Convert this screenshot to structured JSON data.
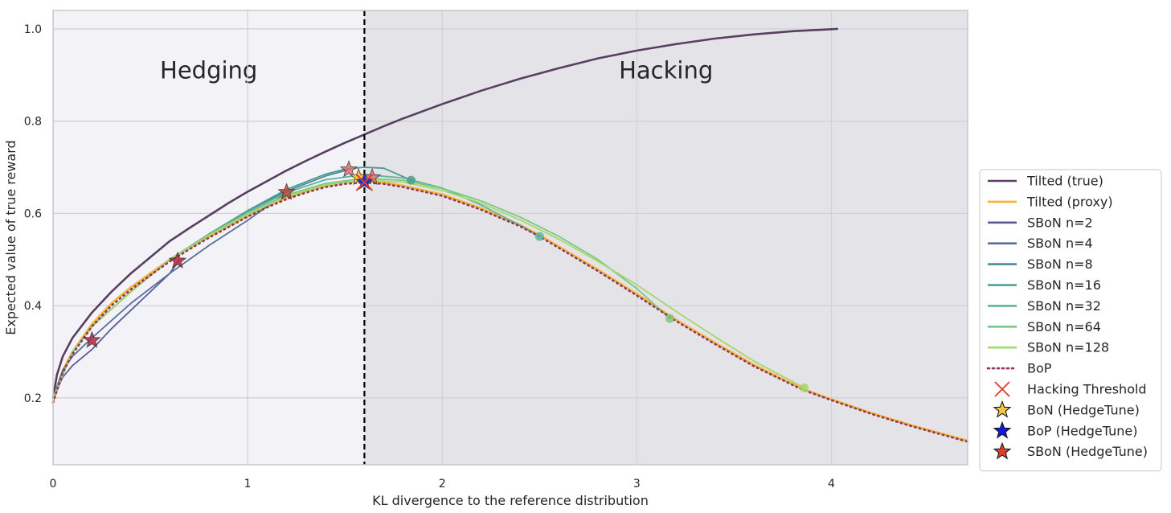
{
  "chart_data": {
    "type": "line",
    "xlabel": "KL divergence to the reference distribution",
    "ylabel": "Expected value of true reward",
    "xlim": [
      0,
      4.7
    ],
    "ylim": [
      0.055,
      1.04
    ],
    "x_ticks": [
      0,
      1,
      2,
      3,
      4
    ],
    "y_ticks": [
      0.2,
      0.4,
      0.6,
      0.8,
      1.0
    ],
    "x_tick_labels": [
      "0",
      "1",
      "2",
      "3",
      "4"
    ],
    "y_tick_labels": [
      "0.2",
      "0.4",
      "0.6",
      "0.8",
      "1.0"
    ],
    "grid": true,
    "legend_position": "right",
    "threshold_x": 1.6,
    "regions": [
      {
        "label": "Hedging",
        "x_range": [
          0,
          1.6
        ],
        "color": "#f2f2f7",
        "label_x": 0.8,
        "label_y": 0.91
      },
      {
        "label": "Hacking",
        "x_range": [
          1.6,
          4.7
        ],
        "color": "#e4e4e8",
        "label_x": 3.15,
        "label_y": 0.91
      }
    ],
    "series": [
      {
        "name": "Tilted (true)",
        "color": "#583f62",
        "style": "solid",
        "width": 2.6,
        "points": [
          [
            0,
            0.2
          ],
          [
            0.02,
            0.25
          ],
          [
            0.05,
            0.29
          ],
          [
            0.1,
            0.33
          ],
          [
            0.2,
            0.385
          ],
          [
            0.3,
            0.43
          ],
          [
            0.4,
            0.47
          ],
          [
            0.5,
            0.505
          ],
          [
            0.6,
            0.54
          ],
          [
            0.7,
            0.568
          ],
          [
            0.8,
            0.595
          ],
          [
            0.9,
            0.622
          ],
          [
            1.0,
            0.647
          ],
          [
            1.1,
            0.67
          ],
          [
            1.2,
            0.693
          ],
          [
            1.3,
            0.714
          ],
          [
            1.4,
            0.734
          ],
          [
            1.5,
            0.753
          ],
          [
            1.6,
            0.771
          ],
          [
            1.7,
            0.789
          ],
          [
            1.8,
            0.806
          ],
          [
            2.0,
            0.837
          ],
          [
            2.2,
            0.866
          ],
          [
            2.4,
            0.892
          ],
          [
            2.6,
            0.915
          ],
          [
            2.8,
            0.936
          ],
          [
            3.0,
            0.953
          ],
          [
            3.2,
            0.967
          ],
          [
            3.4,
            0.979
          ],
          [
            3.6,
            0.988
          ],
          [
            3.8,
            0.995
          ],
          [
            4.03,
            1.0
          ]
        ]
      },
      {
        "name": "Tilted (proxy)",
        "color": "#f9b233",
        "style": "solid",
        "width": 2.6,
        "points": [
          [
            0,
            0.19
          ],
          [
            0.05,
            0.26
          ],
          [
            0.1,
            0.3
          ],
          [
            0.2,
            0.36
          ],
          [
            0.3,
            0.405
          ],
          [
            0.4,
            0.44
          ],
          [
            0.5,
            0.47
          ],
          [
            0.6,
            0.5
          ],
          [
            0.7,
            0.525
          ],
          [
            0.8,
            0.55
          ],
          [
            0.9,
            0.573
          ],
          [
            1.0,
            0.596
          ],
          [
            1.1,
            0.616
          ],
          [
            1.2,
            0.634
          ],
          [
            1.3,
            0.648
          ],
          [
            1.4,
            0.66
          ],
          [
            1.5,
            0.667
          ],
          [
            1.6,
            0.67
          ],
          [
            1.7,
            0.667
          ],
          [
            1.8,
            0.66
          ],
          [
            2.0,
            0.641
          ],
          [
            2.2,
            0.611
          ],
          [
            2.4,
            0.575
          ],
          [
            2.5,
            0.553
          ],
          [
            2.6,
            0.528
          ],
          [
            2.8,
            0.478
          ],
          [
            3.0,
            0.425
          ],
          [
            3.2,
            0.37
          ],
          [
            3.4,
            0.32
          ],
          [
            3.6,
            0.272
          ],
          [
            3.85,
            0.22
          ],
          [
            4.0,
            0.197
          ],
          [
            4.2,
            0.168
          ],
          [
            4.4,
            0.142
          ],
          [
            4.7,
            0.107
          ]
        ]
      },
      {
        "name": "SBoN n=2",
        "color": "#5a5c9a",
        "style": "solid",
        "width": 1.8,
        "points": [
          [
            0,
            0.2
          ],
          [
            0.05,
            0.245
          ],
          [
            0.1,
            0.27
          ],
          [
            0.2,
            0.305
          ],
          [
            0.3,
            0.35
          ],
          [
            0.4,
            0.39
          ],
          [
            0.5,
            0.43
          ],
          [
            0.6,
            0.47
          ],
          [
            0.65,
            0.5
          ]
        ]
      },
      {
        "name": "SBoN n=4",
        "color": "#55709a",
        "style": "solid",
        "width": 1.8,
        "points": [
          [
            0,
            0.2
          ],
          [
            0.05,
            0.26
          ],
          [
            0.1,
            0.29
          ],
          [
            0.2,
            0.33
          ],
          [
            0.4,
            0.405
          ],
          [
            0.6,
            0.47
          ],
          [
            0.8,
            0.53
          ],
          [
            1.0,
            0.585
          ],
          [
            1.2,
            0.645
          ]
        ]
      },
      {
        "name": "SBoN n=8",
        "color": "#4d8a9a",
        "style": "solid",
        "width": 1.8,
        "points": [
          [
            0,
            0.2
          ],
          [
            0.1,
            0.3
          ],
          [
            0.2,
            0.355
          ],
          [
            0.4,
            0.43
          ],
          [
            0.6,
            0.5
          ],
          [
            0.8,
            0.555
          ],
          [
            1.0,
            0.605
          ],
          [
            1.2,
            0.648
          ],
          [
            1.4,
            0.681
          ],
          [
            1.52,
            0.695
          ]
        ]
      },
      {
        "name": "SBoN n=16",
        "color": "#4a9c90",
        "style": "solid",
        "width": 1.8,
        "points": [
          [
            0,
            0.2
          ],
          [
            0.1,
            0.3
          ],
          [
            0.2,
            0.355
          ],
          [
            0.4,
            0.43
          ],
          [
            0.6,
            0.5
          ],
          [
            0.8,
            0.555
          ],
          [
            1.0,
            0.606
          ],
          [
            1.2,
            0.652
          ],
          [
            1.4,
            0.685
          ],
          [
            1.5,
            0.696
          ],
          [
            1.6,
            0.7
          ],
          [
            1.7,
            0.698
          ],
          [
            1.84,
            0.672
          ]
        ]
      },
      {
        "name": "SBoN n=32",
        "color": "#5fb3a0",
        "style": "solid",
        "width": 1.8,
        "points": [
          [
            0,
            0.2
          ],
          [
            0.1,
            0.3
          ],
          [
            0.2,
            0.355
          ],
          [
            0.4,
            0.43
          ],
          [
            0.6,
            0.5
          ],
          [
            0.8,
            0.555
          ],
          [
            1.0,
            0.603
          ],
          [
            1.2,
            0.645
          ],
          [
            1.4,
            0.673
          ],
          [
            1.6,
            0.684
          ],
          [
            1.8,
            0.677
          ],
          [
            2.0,
            0.655
          ],
          [
            2.2,
            0.618
          ],
          [
            2.4,
            0.574
          ],
          [
            2.5,
            0.55
          ]
        ]
      },
      {
        "name": "SBoN n=64",
        "color": "#7cc77f",
        "style": "solid",
        "width": 1.8,
        "points": [
          [
            0,
            0.2
          ],
          [
            0.1,
            0.3
          ],
          [
            0.2,
            0.355
          ],
          [
            0.4,
            0.43
          ],
          [
            0.6,
            0.5
          ],
          [
            0.8,
            0.553
          ],
          [
            1.0,
            0.6
          ],
          [
            1.2,
            0.64
          ],
          [
            1.4,
            0.665
          ],
          [
            1.6,
            0.676
          ],
          [
            1.8,
            0.672
          ],
          [
            2.0,
            0.654
          ],
          [
            2.2,
            0.627
          ],
          [
            2.4,
            0.592
          ],
          [
            2.6,
            0.55
          ],
          [
            2.8,
            0.5
          ],
          [
            3.0,
            0.437
          ],
          [
            3.17,
            0.372
          ]
        ]
      },
      {
        "name": "SBoN n=128",
        "color": "#a5d86a",
        "style": "solid",
        "width": 1.8,
        "points": [
          [
            0,
            0.2
          ],
          [
            0.1,
            0.3
          ],
          [
            0.2,
            0.355
          ],
          [
            0.4,
            0.43
          ],
          [
            0.6,
            0.5
          ],
          [
            0.8,
            0.552
          ],
          [
            1.0,
            0.598
          ],
          [
            1.2,
            0.637
          ],
          [
            1.4,
            0.662
          ],
          [
            1.6,
            0.672
          ],
          [
            1.8,
            0.668
          ],
          [
            2.0,
            0.65
          ],
          [
            2.2,
            0.622
          ],
          [
            2.4,
            0.586
          ],
          [
            2.6,
            0.544
          ],
          [
            2.8,
            0.496
          ],
          [
            3.0,
            0.445
          ],
          [
            3.2,
            0.388
          ],
          [
            3.4,
            0.333
          ],
          [
            3.6,
            0.28
          ],
          [
            3.86,
            0.222
          ]
        ]
      },
      {
        "name": "BoP",
        "color": "#8e3a5a",
        "style": "dotted",
        "width": 2.6,
        "points": [
          [
            0,
            0.19
          ],
          [
            0.05,
            0.255
          ],
          [
            0.1,
            0.295
          ],
          [
            0.2,
            0.355
          ],
          [
            0.3,
            0.4
          ],
          [
            0.4,
            0.435
          ],
          [
            0.5,
            0.466
          ],
          [
            0.6,
            0.496
          ],
          [
            0.7,
            0.522
          ],
          [
            0.8,
            0.547
          ],
          [
            0.9,
            0.57
          ],
          [
            1.0,
            0.593
          ],
          [
            1.1,
            0.613
          ],
          [
            1.2,
            0.631
          ],
          [
            1.3,
            0.645
          ],
          [
            1.4,
            0.657
          ],
          [
            1.5,
            0.664
          ],
          [
            1.6,
            0.667
          ],
          [
            1.7,
            0.664
          ],
          [
            1.8,
            0.657
          ],
          [
            2.0,
            0.638
          ],
          [
            2.2,
            0.608
          ],
          [
            2.4,
            0.572
          ],
          [
            2.5,
            0.55
          ],
          [
            2.6,
            0.525
          ],
          [
            2.8,
            0.475
          ],
          [
            3.0,
            0.422
          ],
          [
            3.2,
            0.367
          ],
          [
            3.4,
            0.317
          ],
          [
            3.6,
            0.269
          ],
          [
            3.85,
            0.218
          ],
          [
            4.0,
            0.195
          ],
          [
            4.2,
            0.166
          ],
          [
            4.4,
            0.14
          ],
          [
            4.7,
            0.105
          ]
        ]
      }
    ],
    "dots": [
      {
        "x": 1.84,
        "y": 0.672,
        "color": "#4a9c90"
      },
      {
        "x": 2.5,
        "y": 0.55,
        "color": "#5fb3a0"
      },
      {
        "x": 3.17,
        "y": 0.372,
        "color": "#7cc77f"
      },
      {
        "x": 3.86,
        "y": 0.222,
        "color": "#a5d86a"
      }
    ],
    "markers": [
      {
        "series": "SBoN (HedgeTune)",
        "x": 0.2,
        "y": 0.325,
        "color": "#b0283e",
        "opacity": 0.85
      },
      {
        "series": "SBoN (HedgeTune)",
        "x": 0.64,
        "y": 0.497,
        "color": "#b0283e",
        "opacity": 0.85
      },
      {
        "series": "SBoN (HedgeTune)",
        "x": 1.2,
        "y": 0.646,
        "color": "#c0483a",
        "opacity": 0.85
      },
      {
        "series": "SBoN (HedgeTune)",
        "x": 1.52,
        "y": 0.695,
        "color": "#e06a6a",
        "opacity": 0.8
      },
      {
        "series": "SBoN (HedgeTune)",
        "x": 1.64,
        "y": 0.678,
        "color": "#e06a6a",
        "opacity": 0.8
      },
      {
        "series": "BoN (HedgeTune)",
        "x": 1.57,
        "y": 0.678,
        "color": "#f4c648",
        "opacity": 1
      },
      {
        "series": "BoP (HedgeTune)",
        "x": 1.6,
        "y": 0.668,
        "color": "#2030e0",
        "opacity": 1
      },
      {
        "series": "Hacking Threshold",
        "x": 1.6,
        "y": 0.667,
        "color": "#e23a2a",
        "opacity": 1
      }
    ],
    "legend": [
      {
        "label": "Tilted (true)",
        "kind": "line",
        "color": "#583f62"
      },
      {
        "label": "Tilted (proxy)",
        "kind": "line",
        "color": "#f9b233"
      },
      {
        "label": "SBoN n=2",
        "kind": "line",
        "color": "#5a5c9a"
      },
      {
        "label": "SBoN n=4",
        "kind": "line",
        "color": "#55709a"
      },
      {
        "label": "SBoN n=8",
        "kind": "line",
        "color": "#4d8a9a"
      },
      {
        "label": "SBoN n=16",
        "kind": "line",
        "color": "#4a9c90"
      },
      {
        "label": "SBoN n=32",
        "kind": "line",
        "color": "#5fb3a0"
      },
      {
        "label": "SBoN n=64",
        "kind": "line",
        "color": "#7cc77f"
      },
      {
        "label": "SBoN n=128",
        "kind": "line",
        "color": "#a5d86a"
      },
      {
        "label": "BoP",
        "kind": "dotted",
        "color": "#8e3a5a"
      },
      {
        "label": "Hacking Threshold",
        "kind": "x",
        "color": "#e23a2a"
      },
      {
        "label": "BoN (HedgeTune)",
        "kind": "star",
        "color": "#f4c648"
      },
      {
        "label": "BoP (HedgeTune)",
        "kind": "star",
        "color": "#1018e0"
      },
      {
        "label": "SBoN (HedgeTune)",
        "kind": "star",
        "color": "#e0402a"
      }
    ]
  }
}
